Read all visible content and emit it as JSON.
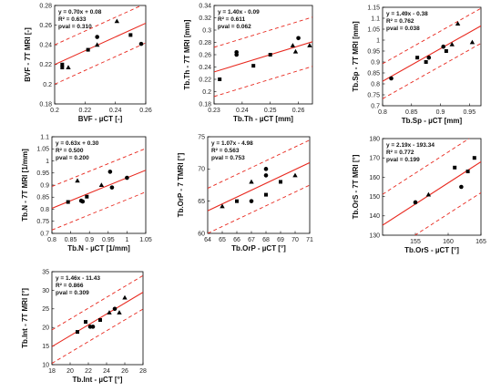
{
  "chart_data": [
    {
      "type": "scatter",
      "xlabel": "BVF - µCT [-]",
      "ylabel": "BVF - 7T MRI [-]",
      "xlim": [
        0.2,
        0.26
      ],
      "ylim": [
        0.18,
        0.28
      ],
      "xticks": [
        0.2,
        0.22,
        0.24,
        0.26
      ],
      "xtick_labels": [
        "0.2",
        "0.22",
        "0.24",
        "0.26"
      ],
      "yticks": [
        0.18,
        0.2,
        0.22,
        0.24,
        0.26,
        0.28
      ],
      "ytick_labels": [
        "0.18",
        "0.2",
        "0.22",
        "0.24",
        "0.26",
        "0.28"
      ],
      "stats": [
        "y = 0.70x + 0.08",
        "R² = 0.633",
        "pval = 0.310"
      ],
      "fit": [
        0.7,
        0.08
      ],
      "band": 0.02,
      "points": [
        {
          "x": 0.205,
          "y": 0.22,
          "m": "square"
        },
        {
          "x": 0.205,
          "y": 0.217,
          "m": "square"
        },
        {
          "x": 0.209,
          "y": 0.217,
          "m": "triangle"
        },
        {
          "x": 0.222,
          "y": 0.235,
          "m": "square"
        },
        {
          "x": 0.228,
          "y": 0.248,
          "m": "circle"
        },
        {
          "x": 0.228,
          "y": 0.24,
          "m": "triangle"
        },
        {
          "x": 0.241,
          "y": 0.264,
          "m": "triangle"
        },
        {
          "x": 0.25,
          "y": 0.25,
          "m": "square"
        },
        {
          "x": 0.257,
          "y": 0.241,
          "m": "circle"
        }
      ]
    },
    {
      "type": "scatter",
      "xlabel": "Tb.Th - µCT [mm]",
      "ylabel": "Tb.Th - 7T MRI [mm]",
      "xlim": [
        0.23,
        0.265
      ],
      "ylim": [
        0.18,
        0.34
      ],
      "xticks": [
        0.23,
        0.24,
        0.25,
        0.26
      ],
      "xtick_labels": [
        "0.23",
        "0.24",
        "0.25",
        "0.26"
      ],
      "yticks": [
        0.18,
        0.2,
        0.22,
        0.24,
        0.26,
        0.28,
        0.3,
        0.32,
        0.34
      ],
      "ytick_labels": [
        "0.18",
        "0.2",
        "0.22",
        "0.24",
        "0.26",
        "0.28",
        "0.3",
        "0.32",
        "0.34"
      ],
      "stats": [
        "y = 1.40x - 0.09",
        "R² = 0.611",
        "pval = 0.062"
      ],
      "fit": [
        1.4,
        -0.09
      ],
      "band": 0.04,
      "points": [
        {
          "x": 0.232,
          "y": 0.22,
          "m": "square"
        },
        {
          "x": 0.238,
          "y": 0.264,
          "m": "circle"
        },
        {
          "x": 0.238,
          "y": 0.26,
          "m": "circle"
        },
        {
          "x": 0.244,
          "y": 0.242,
          "m": "square"
        },
        {
          "x": 0.25,
          "y": 0.26,
          "m": "square"
        },
        {
          "x": 0.258,
          "y": 0.275,
          "m": "triangle"
        },
        {
          "x": 0.259,
          "y": 0.265,
          "m": "triangle"
        },
        {
          "x": 0.26,
          "y": 0.287,
          "m": "circle"
        },
        {
          "x": 0.264,
          "y": 0.275,
          "m": "triangle"
        }
      ]
    },
    {
      "type": "scatter",
      "xlabel": "Tb.Sp - µCT [mm]",
      "ylabel": "Tb.Sp - 7T MRI [mm]",
      "xlim": [
        0.8,
        0.97
      ],
      "ylim": [
        0.7,
        1.15
      ],
      "xticks": [
        0.8,
        0.85,
        0.9,
        0.95
      ],
      "xtick_labels": [
        "0.8",
        "0.85",
        "0.9",
        "0.95"
      ],
      "yticks": [
        0.7,
        0.75,
        0.8,
        0.85,
        0.9,
        0.95,
        1,
        1.05,
        1.1,
        1.15
      ],
      "ytick_labels": [
        "0.7",
        "0.75",
        "0.8",
        "0.85",
        "0.9",
        "0.95",
        "1",
        "1.05",
        "1.1",
        "1.15"
      ],
      "stats": [
        "y = 1.49x - 0.38",
        "R² = 0.762",
        "pval = 0.038"
      ],
      "fit": [
        1.49,
        -0.38
      ],
      "band": 0.08,
      "points": [
        {
          "x": 0.815,
          "y": 0.825,
          "m": "circle"
        },
        {
          "x": 0.86,
          "y": 0.92,
          "m": "square"
        },
        {
          "x": 0.875,
          "y": 0.9,
          "m": "square"
        },
        {
          "x": 0.88,
          "y": 0.92,
          "m": "circle"
        },
        {
          "x": 0.905,
          "y": 0.97,
          "m": "circle"
        },
        {
          "x": 0.91,
          "y": 0.95,
          "m": "square"
        },
        {
          "x": 0.92,
          "y": 0.98,
          "m": "triangle"
        },
        {
          "x": 0.93,
          "y": 1.075,
          "m": "triangle"
        },
        {
          "x": 0.955,
          "y": 0.99,
          "m": "triangle"
        }
      ]
    },
    {
      "type": "scatter",
      "xlabel": "Tb.N - µCT [1/mm]",
      "ylabel": "Tb.N - 7T MRI [1/mm]",
      "xlim": [
        0.8,
        1.05
      ],
      "ylim": [
        0.7,
        1.1
      ],
      "xticks": [
        0.8,
        0.85,
        0.9,
        0.95,
        1,
        1.05
      ],
      "xtick_labels": [
        "0.8",
        "0.85",
        "0.9",
        "0.95",
        "1",
        "1.05"
      ],
      "yticks": [
        0.7,
        0.75,
        0.8,
        0.85,
        0.9,
        0.95,
        1,
        1.05,
        1.1
      ],
      "ytick_labels": [
        "0.7",
        "0.75",
        "0.8",
        "0.85",
        "0.9",
        "0.95",
        "1",
        "1.05",
        "1.1"
      ],
      "stats": [
        "y = 0.63x + 0.30",
        "R² = 0.500",
        "pval = 0.200"
      ],
      "fit": [
        0.63,
        0.3
      ],
      "band": 0.09,
      "points": [
        {
          "x": 0.843,
          "y": 0.83,
          "m": "square"
        },
        {
          "x": 0.868,
          "y": 0.918,
          "m": "triangle"
        },
        {
          "x": 0.878,
          "y": 0.835,
          "m": "circle"
        },
        {
          "x": 0.882,
          "y": 0.832,
          "m": "circle"
        },
        {
          "x": 0.893,
          "y": 0.852,
          "m": "square"
        },
        {
          "x": 0.932,
          "y": 0.9,
          "m": "triangle"
        },
        {
          "x": 0.955,
          "y": 0.955,
          "m": "circle"
        },
        {
          "x": 0.96,
          "y": 0.89,
          "m": "circle"
        },
        {
          "x": 1.0,
          "y": 0.93,
          "m": "circle"
        }
      ]
    },
    {
      "type": "scatter",
      "xlabel": "Tb.OrP - µCT [°]",
      "ylabel": "Tb.OrP - 7 TMRI [°]",
      "xlim": [
        64,
        71
      ],
      "ylim": [
        60,
        75
      ],
      "xticks": [
        64,
        65,
        66,
        67,
        68,
        69,
        70,
        71
      ],
      "xtick_labels": [
        "64",
        "65",
        "66",
        "67",
        "68",
        "69",
        "70",
        "71"
      ],
      "yticks": [
        60,
        65,
        70,
        75
      ],
      "ytick_labels": [
        "60",
        "65",
        "70",
        "75"
      ],
      "stats": [
        "y = 1.07x - 4.98",
        "R² = 0.563",
        "pval = 0.753"
      ],
      "fit": [
        1.07,
        -4.98
      ],
      "band": 3.5,
      "points": [
        {
          "x": 65.0,
          "y": 64.2,
          "m": "triangle"
        },
        {
          "x": 66.0,
          "y": 65.0,
          "m": "square"
        },
        {
          "x": 67.0,
          "y": 65.0,
          "m": "circle"
        },
        {
          "x": 67.0,
          "y": 68.0,
          "m": "triangle"
        },
        {
          "x": 68.0,
          "y": 66.0,
          "m": "square"
        },
        {
          "x": 68.0,
          "y": 69.0,
          "m": "circle"
        },
        {
          "x": 68.0,
          "y": 70.0,
          "m": "circle"
        },
        {
          "x": 69.0,
          "y": 68.0,
          "m": "square"
        },
        {
          "x": 70.0,
          "y": 69.0,
          "m": "triangle"
        }
      ]
    },
    {
      "type": "scatter",
      "xlabel": "Tb.OrS - µCT [°]",
      "ylabel": "Tb.OrS - 7T MRI [°]",
      "xlim": [
        150,
        165
      ],
      "ylim": [
        130,
        180
      ],
      "xticks": [
        155,
        160,
        165
      ],
      "xtick_labels": [
        "155",
        "160",
        "165"
      ],
      "yticks": [
        130,
        140,
        150,
        160,
        170,
        180
      ],
      "ytick_labels": [
        "130",
        "140",
        "150",
        "160",
        "170",
        "180"
      ],
      "stats": [
        "y = 2.19x - 193.34",
        "R² = 0.772",
        "pval = 0.199"
      ],
      "fit": [
        2.19,
        -193.34
      ],
      "band": 16,
      "points": [
        {
          "x": 155.0,
          "y": 147.0,
          "m": "circle"
        },
        {
          "x": 157.0,
          "y": 151.0,
          "m": "triangle"
        },
        {
          "x": 161.0,
          "y": 165.0,
          "m": "square"
        },
        {
          "x": 162.0,
          "y": 155.0,
          "m": "circle"
        },
        {
          "x": 163.0,
          "y": 163.0,
          "m": "square"
        },
        {
          "x": 164.0,
          "y": 170.0,
          "m": "square"
        }
      ]
    },
    {
      "type": "scatter",
      "xlabel": "Tb.Int - µCT [°]",
      "ylabel": "Tb.Int - 7T MRI [°]",
      "xlim": [
        18,
        28
      ],
      "ylim": [
        10,
        35
      ],
      "xticks": [
        18,
        20,
        22,
        24,
        26,
        28
      ],
      "xtick_labels": [
        "18",
        "20",
        "22",
        "24",
        "26",
        "28"
      ],
      "yticks": [
        10,
        15,
        20,
        25,
        30,
        35
      ],
      "ytick_labels": [
        "10",
        "15",
        "20",
        "25",
        "30",
        "35"
      ],
      "stats": [
        "y = 1.46x - 11.43",
        "R² = 0.866",
        "pval = 0.309"
      ],
      "fit": [
        1.46,
        -11.43
      ],
      "band": 4.5,
      "points": [
        {
          "x": 20.8,
          "y": 18.8,
          "m": "square"
        },
        {
          "x": 21.7,
          "y": 21.5,
          "m": "square"
        },
        {
          "x": 22.2,
          "y": 20.2,
          "m": "circle"
        },
        {
          "x": 22.5,
          "y": 20.2,
          "m": "circle"
        },
        {
          "x": 23.3,
          "y": 22.0,
          "m": "square"
        },
        {
          "x": 24.3,
          "y": 24.0,
          "m": "triangle"
        },
        {
          "x": 24.9,
          "y": 25.0,
          "m": "circle"
        },
        {
          "x": 25.4,
          "y": 24.0,
          "m": "triangle"
        },
        {
          "x": 26.0,
          "y": 28.0,
          "m": "triangle"
        }
      ]
    }
  ]
}
